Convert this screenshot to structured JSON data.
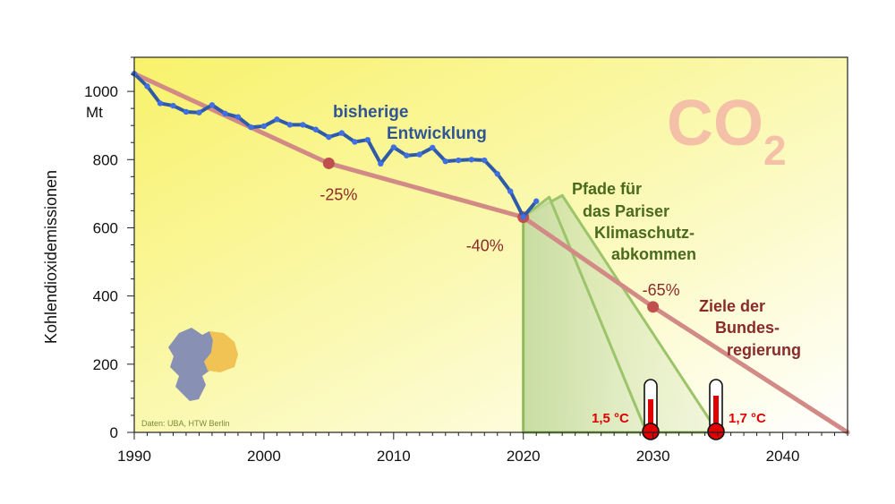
{
  "chart_data": {
    "type": "line",
    "ylabel": "Kohlendioxidemissionen",
    "yunit": "Mt",
    "xlim": [
      1990,
      2045
    ],
    "ylim": [
      0,
      1100
    ],
    "xticks": [
      1990,
      2000,
      2010,
      2020,
      2030,
      2040
    ],
    "yticks": [
      0,
      200,
      400,
      600,
      800,
      1000
    ],
    "yminor_step": 50,
    "xminor_step": 1,
    "grid": false,
    "watermark": {
      "text": "CO",
      "sub": "2"
    },
    "source_note": "Daten: UBA, HTW Berlin",
    "colors": {
      "historical": "#2e5aa8",
      "historical_points": "#3f6fe0",
      "targets": "#d28a86",
      "target_points": "#c0504d",
      "paths_fill": "#c7dca0",
      "paths_line": "#9cc46a",
      "background_yellow": "#f8f26a"
    },
    "series": [
      {
        "name": "bisherige Entwicklung",
        "label_lines": [
          "bisherige",
          "Entwicklung"
        ],
        "x": [
          1990,
          1991,
          1992,
          1993,
          1994,
          1995,
          1996,
          1997,
          1998,
          1999,
          2000,
          2001,
          2002,
          2003,
          2004,
          2005,
          2006,
          2007,
          2008,
          2009,
          2010,
          2011,
          2012,
          2013,
          2014,
          2015,
          2016,
          2017,
          2018,
          2019,
          2020,
          2021
        ],
        "y": [
          1052,
          1015,
          965,
          958,
          940,
          938,
          960,
          935,
          925,
          895,
          898,
          918,
          902,
          902,
          888,
          866,
          878,
          852,
          858,
          788,
          836,
          812,
          815,
          835,
          795,
          798,
          800,
          798,
          758,
          707,
          632,
          678
        ]
      },
      {
        "name": "Ziele der Bundesregierung",
        "label_lines": [
          "Ziele der",
          "Bundes-",
          "regierung"
        ],
        "x": [
          1990,
          2005,
          2020,
          2030,
          2045
        ],
        "y": [
          1052,
          789,
          631,
          368,
          0
        ],
        "markers": [
          {
            "x": 2005,
            "y": 789,
            "label": "-25%"
          },
          {
            "x": 2020,
            "y": 631,
            "label": "-40%"
          },
          {
            "x": 2030,
            "y": 368,
            "label": "-65%"
          }
        ]
      },
      {
        "name": "Pfade für das Pariser Klimaschutzabkommen",
        "label_lines": [
          "Pfade für",
          "das Pariser",
          "Klimaschutz-",
          "abkommen"
        ],
        "paths": [
          {
            "label": "1,5 °C",
            "x": [
              2020,
              2022,
              2029.5
            ],
            "y": [
              632,
              690,
              0
            ]
          },
          {
            "label": "1,7 °C",
            "x": [
              2020,
              2023,
              2035
            ],
            "y": [
              632,
              695,
              0
            ]
          }
        ]
      }
    ]
  }
}
